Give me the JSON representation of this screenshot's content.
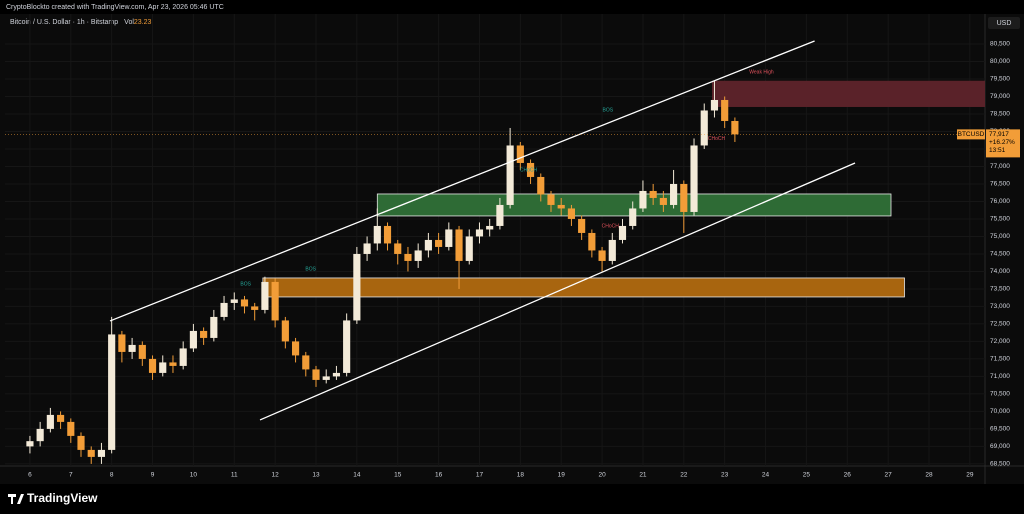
{
  "chart_data": {
    "type": "candlestick",
    "header": "CryptoBlockto created with TradingView.com, Apr 23, 2026 05:46 UTC",
    "title": "Bitcoin / U.S. Dollar · 1h · Bitstamp",
    "volume_label": "Vol",
    "volume_value": "23.23",
    "currency": "USD",
    "brand": "TradingView",
    "symbol": "BTCUSD",
    "last_price": {
      "value": 77917,
      "label": "77,917"
    },
    "change": "+16.27%",
    "countdown": "13:51",
    "up_color": "#f3ead8",
    "down_color": "#f29d38",
    "x": [
      6,
      6.25,
      6.5,
      6.75,
      7,
      7.25,
      7.5,
      7.75,
      8,
      8.25,
      8.5,
      8.75,
      9,
      9.25,
      9.5,
      9.75,
      10,
      10.25,
      10.5,
      10.75,
      11,
      11.25,
      11.5,
      11.75,
      12,
      12.25,
      12.5,
      12.75,
      13,
      13.25,
      13.5,
      13.75,
      14,
      14.25,
      14.5,
      14.75,
      15,
      15.25,
      15.5,
      15.75,
      16,
      16.25,
      16.5,
      16.75,
      17,
      17.25,
      17.5,
      17.75,
      18,
      18.25,
      18.5,
      18.75,
      19,
      19.25,
      19.5,
      19.75,
      20,
      20.25,
      20.5,
      20.75,
      21,
      21.25,
      21.5,
      21.75,
      22,
      22.25,
      22.5,
      22.75,
      23,
      23.25
    ],
    "open": [
      69000,
      69150,
      69500,
      69900,
      69700,
      69300,
      68900,
      68700,
      68900,
      72200,
      71700,
      71900,
      71500,
      71100,
      71400,
      71300,
      71800,
      72300,
      72100,
      72700,
      73100,
      73200,
      73000,
      72900,
      73700,
      72600,
      72000,
      71600,
      71200,
      70900,
      71000,
      71100,
      72600,
      74500,
      74800,
      75300,
      74800,
      74500,
      74300,
      74600,
      74900,
      74700,
      75200,
      74300,
      75000,
      75200,
      75300,
      75900,
      77600,
      77100,
      76700,
      76200,
      75900,
      75800,
      75500,
      75100,
      74600,
      74300,
      74900,
      75300,
      75800,
      76300,
      76100,
      75900,
      76500,
      75700,
      77600,
      78600,
      78900,
      78300
    ],
    "high": [
      69300,
      69700,
      70100,
      70000,
      69800,
      69400,
      69000,
      69100,
      72700,
      72300,
      72100,
      72000,
      71600,
      71600,
      71600,
      72000,
      72500,
      72400,
      72900,
      73300,
      73400,
      73300,
      73100,
      73850,
      73800,
      72700,
      72100,
      71700,
      71300,
      71200,
      71300,
      72800,
      74700,
      75000,
      75800,
      75400,
      74900,
      74700,
      74800,
      75100,
      75100,
      75400,
      75300,
      75200,
      75400,
      75500,
      76100,
      78100,
      77700,
      77200,
      76800,
      76300,
      76100,
      75900,
      75600,
      75200,
      74700,
      75100,
      75500,
      76000,
      76600,
      76500,
      76300,
      76900,
      76600,
      77800,
      78800,
      79450,
      79000,
      78400
    ],
    "low": [
      68800,
      69000,
      69400,
      69500,
      69100,
      68700,
      68500,
      68500,
      68800,
      71400,
      71500,
      71300,
      70900,
      71000,
      71100,
      71200,
      71700,
      71900,
      72000,
      72600,
      72900,
      72800,
      72600,
      72800,
      72400,
      71800,
      71400,
      71000,
      70700,
      70800,
      70900,
      71000,
      72500,
      74300,
      74600,
      74600,
      74200,
      74000,
      74100,
      74400,
      74500,
      74600,
      73500,
      74200,
      74800,
      75000,
      75200,
      75800,
      76900,
      76500,
      76000,
      75700,
      75600,
      75300,
      74900,
      74400,
      74000,
      74200,
      74800,
      75200,
      75700,
      75900,
      75700,
      75800,
      75100,
      75600,
      77500,
      78400,
      78100,
      77700
    ],
    "close": [
      69150,
      69500,
      69900,
      69700,
      69300,
      68900,
      68700,
      68900,
      72200,
      71700,
      71900,
      71500,
      71100,
      71400,
      71300,
      71800,
      72300,
      72100,
      72700,
      73100,
      73200,
      73000,
      72900,
      73700,
      72600,
      72000,
      71600,
      71200,
      70900,
      71000,
      71100,
      72600,
      74500,
      74800,
      75300,
      74800,
      74500,
      74300,
      74600,
      74900,
      74700,
      75200,
      74300,
      75000,
      75200,
      75300,
      75900,
      77600,
      77100,
      76700,
      76200,
      75900,
      75800,
      75500,
      75100,
      74600,
      74300,
      74900,
      75300,
      75800,
      76300,
      76100,
      75900,
      76500,
      75700,
      77600,
      78600,
      78900,
      78300,
      77917
    ],
    "zones": [
      {
        "x": [
          22.69,
          29.37
        ],
        "y": [
          78700,
          79450
        ],
        "color": "#5a2229"
      },
      {
        "x": [
          14.5,
          27.07
        ],
        "y": [
          75586,
          76214
        ],
        "color": "#2e6b35"
      },
      {
        "x": [
          11.7,
          27.4
        ],
        "y": [
          73271,
          73814
        ],
        "color": "#a8650f"
      }
    ],
    "trendlines": [
      {
        "x": [
          7.96,
          25.2
        ],
        "y": [
          72586,
          80586
        ]
      },
      {
        "x": [
          11.63,
          26.19
        ],
        "y": [
          69757,
          77100
        ]
      }
    ],
    "annotations": [
      {
        "text": "Weak High",
        "x": 23.9,
        "y": 79700,
        "color": "#e0525c"
      },
      {
        "text": "BOS",
        "x": 20.14,
        "y": 78614,
        "color": "#26a69a"
      },
      {
        "text": "BOS",
        "x": 12.87,
        "y": 74071,
        "color": "#26a69a"
      },
      {
        "text": "BOS",
        "x": 11.28,
        "y": 73643,
        "color": "#26a69a"
      },
      {
        "text": "CHoCH",
        "x": 18.2,
        "y": 76900,
        "color": "#26a69a"
      },
      {
        "text": "CHoCH",
        "x": 20.2,
        "y": 75300,
        "color": "#e0525c"
      },
      {
        "text": "CHoCH",
        "x": 22.8,
        "y": 77800,
        "color": "#e0525c"
      }
    ],
    "xlim": [
      5.39,
      29.37
    ],
    "ylim": [
      68440,
      81300
    ],
    "xticks": [
      6,
      7,
      8,
      9,
      10,
      11,
      12,
      13,
      14,
      15,
      16,
      17,
      18,
      19,
      20,
      21,
      22,
      23,
      24,
      25,
      26,
      27,
      28,
      29
    ],
    "yticks": [
      {
        "value": 68500,
        "label": "68,500"
      },
      {
        "value": 69000,
        "label": "69,000"
      },
      {
        "value": 69500,
        "label": "69,500"
      },
      {
        "value": 70000,
        "label": "70,000"
      },
      {
        "value": 70500,
        "label": "70,500"
      },
      {
        "value": 71000,
        "label": "71,000"
      },
      {
        "value": 71500,
        "label": "71,500"
      },
      {
        "value": 72000,
        "label": "72,000"
      },
      {
        "value": 72500,
        "label": "72,500"
      },
      {
        "value": 73000,
        "label": "73,000"
      },
      {
        "value": 73500,
        "label": "73,500"
      },
      {
        "value": 74000,
        "label": "74,000"
      },
      {
        "value": 74500,
        "label": "74,500"
      },
      {
        "value": 75000,
        "label": "75,000"
      },
      {
        "value": 75500,
        "label": "75,500"
      },
      {
        "value": 76000,
        "label": "76,000"
      },
      {
        "value": 76500,
        "label": "76,500"
      },
      {
        "value": 77000,
        "label": "77,000"
      },
      {
        "value": 77500,
        "label": "77,500"
      },
      {
        "value": 78000,
        "label": "78,000"
      },
      {
        "value": 78500,
        "label": "78,500"
      },
      {
        "value": 79000,
        "label": "79,000"
      },
      {
        "value": 79500,
        "label": "79,500"
      },
      {
        "value": 80000,
        "label": "80,000"
      },
      {
        "value": 80500,
        "label": "80,500"
      }
    ],
    "grid": true
  }
}
